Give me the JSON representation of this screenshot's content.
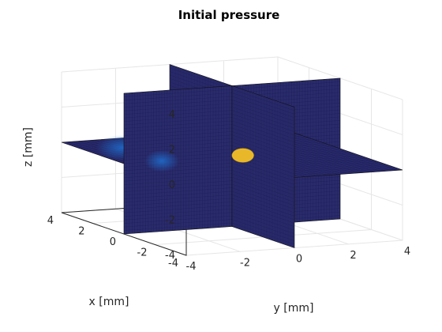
{
  "chart_data": {
    "type": "3d-slice",
    "title": "Initial pressure",
    "xlabel": "x [mm]",
    "ylabel": "y [mm]",
    "zlabel": "z [mm]",
    "xlim": [
      -4,
      4
    ],
    "ylim": [
      -4,
      4
    ],
    "zlim": [
      -4,
      4
    ],
    "xticks": [
      -4,
      -2,
      0,
      2,
      4
    ],
    "yticks": [
      -4,
      -2,
      0,
      2,
      4
    ],
    "zticks": [
      -4,
      -2,
      0,
      2,
      4
    ],
    "grid": true,
    "slices": [
      {
        "plane": "x",
        "at": 0
      },
      {
        "plane": "y",
        "at": 0
      },
      {
        "plane": "z",
        "at": 0
      }
    ],
    "colormap": "parula",
    "background_value_color": "#282a6a",
    "source": {
      "center": [
        0,
        0.4,
        0
      ],
      "radius": 0.45,
      "color": "#e8b82a"
    },
    "colors": {
      "plane": "#2a2b6b",
      "mesh": "#1a1a55",
      "glow": "#1f6fcf"
    }
  }
}
